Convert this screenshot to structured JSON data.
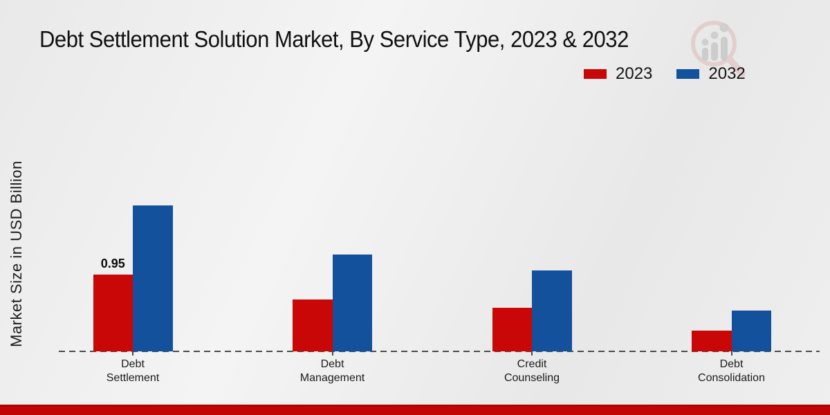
{
  "title": "Debt Settlement Solution Market, By Service Type, 2023 & 2032",
  "ylabel": "Market Size in USD Billion",
  "colors": {
    "series_2023": "#c90707",
    "series_2032": "#14519c",
    "footer_band": "#c20404",
    "baseline": "#4a4a4a",
    "background": "#ededed"
  },
  "legend": {
    "position": "top-right",
    "items": [
      {
        "label": "2023",
        "color": "#c90707"
      },
      {
        "label": "2032",
        "color": "#14519c"
      }
    ]
  },
  "watermark": {
    "name": "market-research-magnifier-logo"
  },
  "chart_data": {
    "type": "bar",
    "title": "Debt Settlement Solution Market, By Service Type, 2023 & 2032",
    "xlabel": "",
    "ylabel": "Market Size in USD Billion",
    "categories": [
      "Debt Settlement",
      "Debt Management",
      "Credit Counseling",
      "Debt Consolidation"
    ],
    "category_lines": [
      [
        "Debt",
        "Settlement"
      ],
      [
        "Debt",
        "Management"
      ],
      [
        "Credit",
        "Counseling"
      ],
      [
        "Debt",
        "Consolidation"
      ]
    ],
    "series": [
      {
        "name": "2023",
        "color": "#c90707",
        "values": [
          0.95,
          0.64,
          0.54,
          0.26
        ]
      },
      {
        "name": "2032",
        "color": "#14519c",
        "values": [
          1.81,
          1.2,
          1.0,
          0.51
        ]
      }
    ],
    "value_labels": [
      {
        "series_index": 0,
        "category_index": 0,
        "text": "0.95"
      }
    ],
    "ylim": [
      0,
      2
    ],
    "grid": false,
    "axis_style": "dashed-baseline-with-ticks",
    "legend_position": "top-right"
  }
}
